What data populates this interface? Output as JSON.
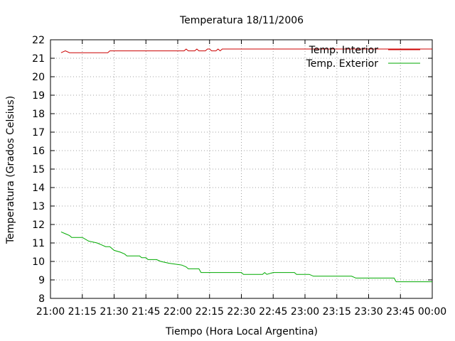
{
  "chart_data": {
    "type": "line",
    "title": "Temperatura 18/11/2006",
    "xlabel": "Tiempo (Hora Local Argentina)",
    "ylabel": "Temperatura (Grados Celsius)",
    "x_ticks": [
      "21:00",
      "21:15",
      "21:30",
      "21:45",
      "22:00",
      "22:15",
      "22:30",
      "22:45",
      "23:00",
      "23:15",
      "23:30",
      "23:45",
      "00:00"
    ],
    "y_ticks": [
      "8",
      "9",
      "10",
      "11",
      "12",
      "13",
      "14",
      "15",
      "16",
      "17",
      "18",
      "19",
      "20",
      "21",
      "22"
    ],
    "xlim": [
      "21:00",
      "00:00"
    ],
    "ylim": [
      8,
      22
    ],
    "grid": true,
    "legend_position": "top-right",
    "series": [
      {
        "name": "Temp. Interior",
        "color": "#cc0000",
        "points": [
          [
            "21:05",
            21.3
          ],
          [
            "21:07",
            21.4
          ],
          [
            "21:09",
            21.3
          ],
          [
            "21:12",
            21.3
          ],
          [
            "21:27",
            21.3
          ],
          [
            "21:28",
            21.4
          ],
          [
            "22:03",
            21.4
          ],
          [
            "22:04",
            21.5
          ],
          [
            "22:05",
            21.4
          ],
          [
            "22:08",
            21.4
          ],
          [
            "22:09",
            21.5
          ],
          [
            "22:10",
            21.4
          ],
          [
            "22:13",
            21.4
          ],
          [
            "22:14",
            21.5
          ],
          [
            "22:15",
            21.5
          ],
          [
            "22:16",
            21.4
          ],
          [
            "22:18",
            21.4
          ],
          [
            "22:19",
            21.5
          ],
          [
            "22:20",
            21.4
          ],
          [
            "22:21",
            21.5
          ],
          [
            "00:00",
            21.5
          ]
        ]
      },
      {
        "name": "Temp. Exterior",
        "color": "#00aa00",
        "points": [
          [
            "21:05",
            11.6
          ],
          [
            "21:07",
            11.5
          ],
          [
            "21:09",
            11.4
          ],
          [
            "21:10",
            11.3
          ],
          [
            "21:15",
            11.3
          ],
          [
            "21:18",
            11.1
          ],
          [
            "21:22",
            11.0
          ],
          [
            "21:24",
            10.9
          ],
          [
            "21:26",
            10.8
          ],
          [
            "21:28",
            10.8
          ],
          [
            "21:30",
            10.6
          ],
          [
            "21:33",
            10.5
          ],
          [
            "21:35",
            10.4
          ],
          [
            "21:36",
            10.3
          ],
          [
            "21:42",
            10.3
          ],
          [
            "21:43",
            10.2
          ],
          [
            "21:45",
            10.2
          ],
          [
            "21:46",
            10.1
          ],
          [
            "21:50",
            10.1
          ],
          [
            "21:52",
            10.0
          ],
          [
            "21:56",
            9.9
          ],
          [
            "22:02",
            9.8
          ],
          [
            "22:04",
            9.7
          ],
          [
            "22:05",
            9.6
          ],
          [
            "22:10",
            9.6
          ],
          [
            "22:11",
            9.4
          ],
          [
            "22:30",
            9.4
          ],
          [
            "22:31",
            9.3
          ],
          [
            "22:40",
            9.3
          ],
          [
            "22:41",
            9.4
          ],
          [
            "22:42",
            9.3
          ],
          [
            "22:45",
            9.4
          ],
          [
            "22:55",
            9.4
          ],
          [
            "22:56",
            9.3
          ],
          [
            "23:02",
            9.3
          ],
          [
            "23:04",
            9.2
          ],
          [
            "23:22",
            9.2
          ],
          [
            "23:24",
            9.1
          ],
          [
            "23:42",
            9.1
          ],
          [
            "23:43",
            8.9
          ],
          [
            "00:00",
            8.9
          ]
        ]
      }
    ]
  }
}
